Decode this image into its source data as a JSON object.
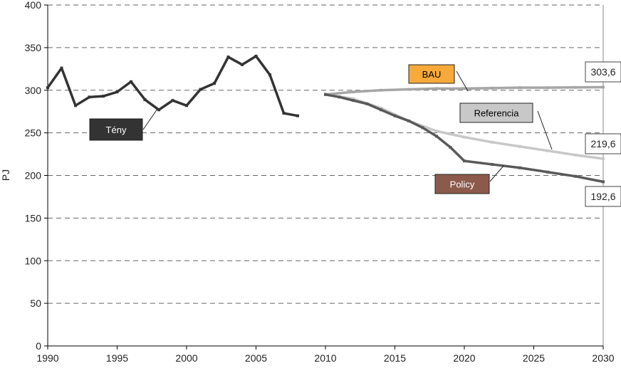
{
  "chart_data": {
    "type": "line",
    "ylabel": "PJ",
    "xlim": [
      1990,
      2030
    ],
    "ylim": [
      0,
      400
    ],
    "xticks": [
      1990,
      1995,
      2000,
      2005,
      2010,
      2015,
      2020,
      2025,
      2030
    ],
    "yticks": [
      0,
      50,
      100,
      150,
      200,
      250,
      300,
      350,
      400
    ],
    "grid": "horizontal dashed",
    "series": [
      {
        "name": "Tény",
        "color": "#333333",
        "x": [
          1990,
          1991,
          1992,
          1993,
          1994,
          1995,
          1996,
          1997,
          1998,
          1999,
          2000,
          2001,
          2002,
          2003,
          2004,
          2005,
          2006,
          2007,
          2008
        ],
        "y": [
          303,
          326,
          282,
          292,
          293,
          298,
          310,
          289,
          277,
          288,
          282,
          301,
          308,
          339,
          330,
          340,
          318,
          273,
          270
        ]
      },
      {
        "name": "BAU",
        "color": "#a6a6a6",
        "x": [
          2010,
          2012,
          2014,
          2016,
          2018,
          2020,
          2022,
          2024,
          2026,
          2028,
          2030
        ],
        "y": [
          295,
          298,
          300,
          301,
          302,
          302,
          302.5,
          303,
          303,
          303.3,
          303.6
        ]
      },
      {
        "name": "Referencia",
        "color": "#c8c8c8",
        "x": [
          2010,
          2012,
          2014,
          2016,
          2018,
          2020,
          2022,
          2024,
          2026,
          2028,
          2030
        ],
        "y": [
          295,
          290,
          279,
          264,
          252,
          245,
          239,
          234,
          229,
          224,
          219.6
        ]
      },
      {
        "name": "Policy",
        "color": "#595959",
        "x": [
          2010,
          2011,
          2012,
          2013,
          2014,
          2015,
          2016,
          2017,
          2018,
          2019,
          2020,
          2022,
          2024,
          2026,
          2028,
          2030
        ],
        "y": [
          295,
          292,
          288,
          284,
          277,
          270,
          264,
          256,
          246,
          233,
          217,
          213,
          209,
          204,
          199,
          192.6
        ]
      }
    ],
    "labels": [
      {
        "text": "Tény",
        "bg": "#333333",
        "fg": "#ffffff"
      },
      {
        "text": "BAU",
        "bg": "#f7a93a",
        "fg": "#000000"
      },
      {
        "text": "Referencia",
        "bg": "#c8c8c8",
        "fg": "#000000"
      },
      {
        "text": "Policy",
        "bg": "#8c5a4b",
        "fg": "#ffffff"
      }
    ],
    "end_values": [
      "303,6",
      "219,6",
      "192,6"
    ]
  }
}
